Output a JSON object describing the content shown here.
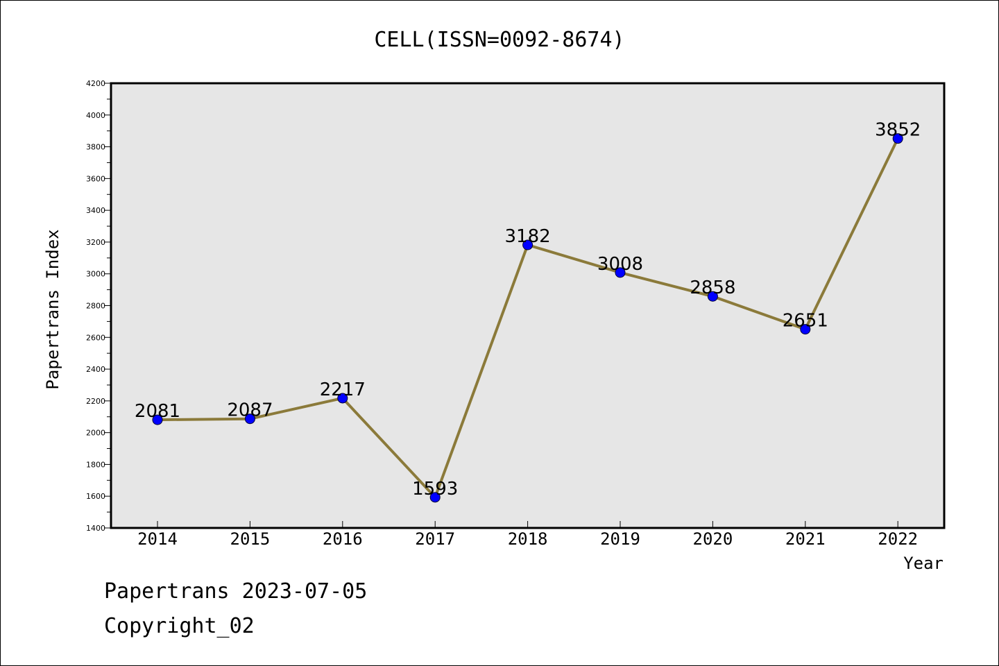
{
  "chart_data": {
    "type": "line",
    "title": "CELL(ISSN=0092-8674)",
    "xlabel": "Year",
    "ylabel": "Papertrans Index",
    "categories": [
      "2014",
      "2015",
      "2016",
      "2017",
      "2018",
      "2019",
      "2020",
      "2021",
      "2022"
    ],
    "values": [
      2081,
      2087,
      2217,
      1593,
      3182,
      3008,
      2858,
      2651,
      3852
    ],
    "ylim": [
      1400,
      4200
    ],
    "yticks": [
      1400,
      1600,
      1800,
      2000,
      2200,
      2400,
      2600,
      2800,
      3000,
      3200,
      3400,
      3600,
      3800,
      4000,
      4200
    ],
    "grid": false,
    "legend": "none",
    "line_color": "#8b7a3a",
    "marker_color": "#0000ff",
    "plot_background": "#e6e6e6"
  },
  "footer": {
    "date_line": "Papertrans 2023-07-05",
    "copyright_line": "Copyright_02"
  }
}
